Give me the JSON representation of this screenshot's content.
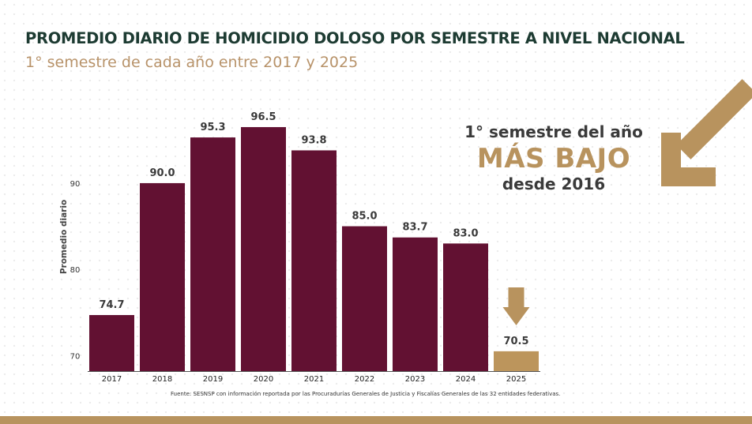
{
  "title": "PROMEDIO DIARIO DE HOMICIDIO DOLOSO POR SEMESTRE A NIVEL NACIONAL",
  "subtitle": "1° semestre de cada año entre 2017 y 2025",
  "callout": {
    "line1": "1° semestre del año",
    "line2": "MÁS BAJO",
    "line3": "desde 2016"
  },
  "source": "Fuente: SESNSP con información reportada por las Procuradurías Generales de Justicia y Fiscalías Generales de las 32 entidades federativas.",
  "colors": {
    "bar": "#621132",
    "highlight": "#bc955c",
    "title": "#1d3b32",
    "accent": "#b8935e"
  },
  "chart_data": {
    "type": "bar",
    "title": "PROMEDIO DIARIO DE HOMICIDIO DOLOSO POR SEMESTRE A NIVEL NACIONAL",
    "subtitle": "1° semestre de cada año entre 2017 y 2025",
    "xlabel": "",
    "ylabel": "Promedio diario",
    "categories": [
      "2017",
      "2018",
      "2019",
      "2020",
      "2021",
      "2022",
      "2023",
      "2024",
      "2025"
    ],
    "values": [
      74.7,
      90.0,
      95.3,
      96.5,
      93.8,
      85.0,
      83.7,
      83.0,
      70.5
    ],
    "value_labels": [
      "74.7",
      "90.0",
      "95.3",
      "96.5",
      "93.8",
      "85.0",
      "83.7",
      "83.0",
      "70.5"
    ],
    "highlight_category": "2025",
    "yticks": [
      70,
      80,
      90
    ],
    "ylim": [
      68.2,
      96.5
    ],
    "grid": false,
    "legend": "none"
  }
}
